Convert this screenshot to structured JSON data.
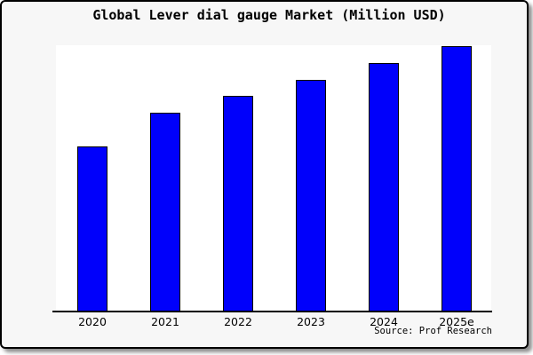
{
  "chart": {
    "title": "Global Lever dial gauge Market (Million USD)",
    "source": "Source: Prof Research",
    "colors": {
      "bar_fill": "#0000fb",
      "bar_border": "#000000",
      "card_background": "#f7f7f7",
      "plot_background": "#ffffff",
      "axis": "#000000",
      "text": "#000000"
    }
  },
  "chart_data": {
    "type": "bar",
    "categories": [
      "2020",
      "2021",
      "2022",
      "2023",
      "2024",
      "2025e"
    ],
    "values": [
      100,
      120,
      130,
      140,
      150,
      160
    ],
    "title": "Global Lever dial gauge Market (Million USD)",
    "xlabel": "",
    "ylabel": "",
    "ylim": [
      0,
      160
    ],
    "grid": false,
    "legend": false,
    "annotations": [
      "Source: Prof Research"
    ],
    "note": "y-axis has no tick labels; values are relative estimates from bar heights (proportions 1.0:1.2:1.3:1.4:1.5:1.6)"
  }
}
